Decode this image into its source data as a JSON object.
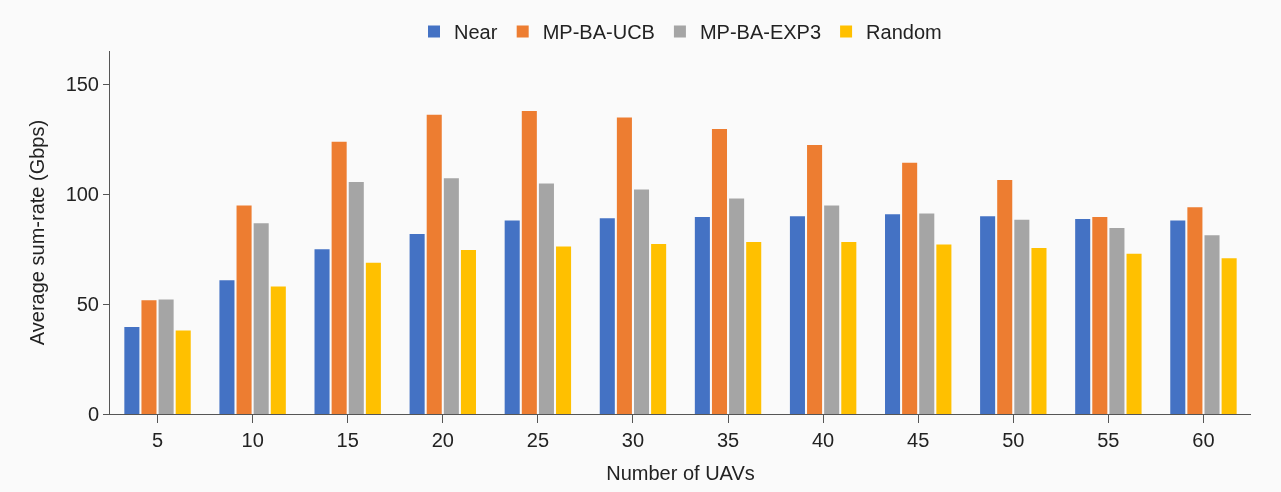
{
  "chart_data": {
    "type": "bar",
    "xlabel": "Number of UAVs",
    "ylabel": "Average sum-rate (Gbps)",
    "categories": [
      "5",
      "10",
      "15",
      "20",
      "25",
      "30",
      "35",
      "40",
      "45",
      "50",
      "55",
      "60"
    ],
    "series": [
      {
        "name": "Near",
        "color": "#4472c4",
        "values": [
          39.5,
          60.8,
          74.9,
          81.8,
          87.9,
          89.0,
          89.5,
          89.9,
          90.8,
          89.9,
          88.6,
          87.9
        ]
      },
      {
        "name": "MP-BA-UCB",
        "color": "#ed7d31",
        "values": [
          51.7,
          94.8,
          123.8,
          136.0,
          137.7,
          134.8,
          129.5,
          122.3,
          114.2,
          106.4,
          89.5,
          94.0
        ]
      },
      {
        "name": "MP-BA-EXP3",
        "color": "#a5a5a5",
        "values": [
          52.0,
          86.7,
          105.5,
          107.2,
          104.8,
          102.0,
          98.0,
          94.8,
          91.1,
          88.3,
          84.6,
          81.3
        ]
      },
      {
        "name": "Random",
        "color": "#ffc000",
        "values": [
          38.0,
          58.0,
          68.8,
          74.5,
          76.1,
          77.3,
          78.2,
          78.2,
          77.0,
          75.4,
          72.8,
          70.8
        ]
      }
    ],
    "ylim": [
      0,
      165
    ],
    "yticks": [
      0,
      50,
      100,
      150
    ],
    "grid": false,
    "legend": "top"
  }
}
